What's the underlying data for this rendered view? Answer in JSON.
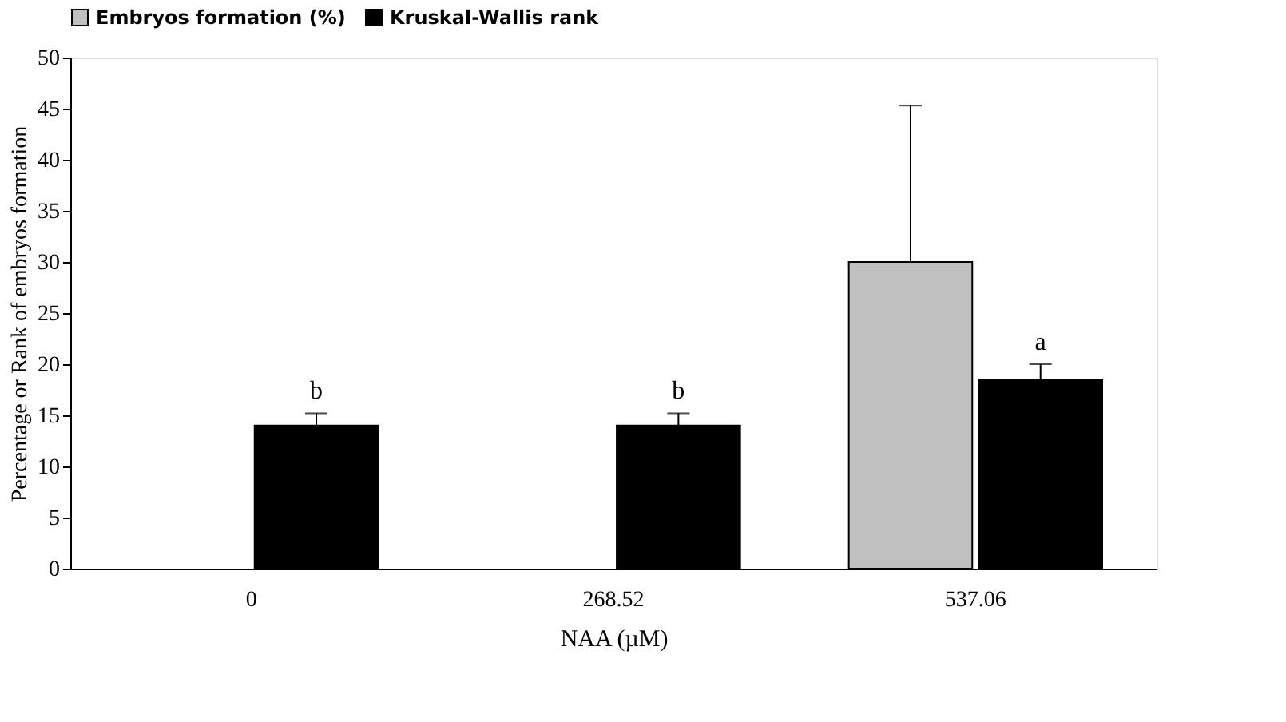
{
  "chart_data": {
    "type": "bar",
    "xlabel": "NAA (µM)",
    "ylabel": "Percentage or Rank of embryos formation",
    "categories": [
      "0",
      "268.52",
      "537.06"
    ],
    "series": [
      {
        "name": "Embryos formation (%)",
        "color": "#c0c0c0",
        "values": [
          null,
          null,
          30
        ],
        "errors": [
          null,
          null,
          [
            30,
            45.3
          ]
        ]
      },
      {
        "name": "Kruskal-Wallis rank",
        "color": "#000000",
        "values": [
          14,
          14,
          18.5
        ],
        "errors": [
          [
            14,
            15.2
          ],
          [
            14,
            15.2
          ],
          [
            18.5,
            20
          ]
        ]
      }
    ],
    "ylim": [
      0,
      50
    ],
    "yticks": [
      0,
      5,
      10,
      15,
      20,
      25,
      30,
      35,
      40,
      45,
      50
    ],
    "grid": false,
    "legend": "top",
    "annotations": [
      "b",
      "b",
      "a"
    ]
  }
}
